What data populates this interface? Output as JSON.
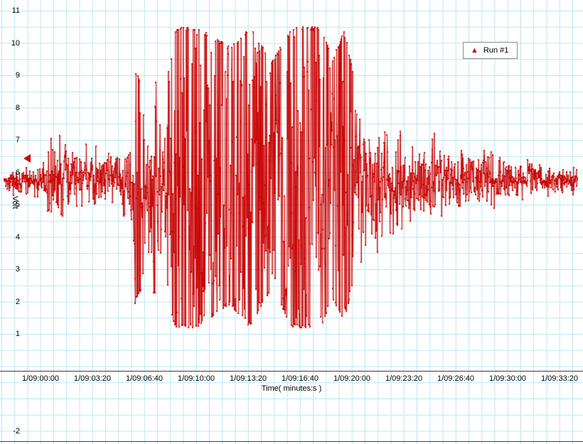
{
  "colors": {
    "background": "#ffffff",
    "grid": "#bce8ef",
    "series": "#c80000",
    "axis_line": "#3c3c3c",
    "text": "#000000"
  },
  "legend": {
    "marker": "triangle-up-icon",
    "marker_glyph": "▲",
    "marker_color": "#cc0000",
    "label": "Run #1"
  },
  "cursor_marker": {
    "shape": "triangle-left",
    "color": "#cc0000"
  },
  "chart_data": {
    "type": "line",
    "title": "",
    "xlabel": "Time( minutes:s )",
    "ylabel": "Volt",
    "ylim": [
      -2,
      11
    ],
    "grid": true,
    "legend_position": "top-right",
    "series": [
      {
        "name": "Run #1",
        "color": "#c80000",
        "marker": "dot"
      }
    ],
    "x_ticks": [
      "1/09:00:00",
      "1/09:03:20",
      "1/09:06:40",
      "1/09:10:00",
      "1/09:13:20",
      "1/09:16:40",
      "1/09:20:00",
      "1/09:23:20",
      "1/09:26:40",
      "1/09:30:00",
      "1/09:33:20"
    ],
    "y_ticks": [
      "11",
      "10",
      "9",
      "8",
      "7",
      "6",
      "5",
      "4",
      "3",
      "2",
      "1"
    ],
    "y_below_axis_label": "-2",
    "signal": {
      "description": "Dense noisy voltage waveform: quiet baseline ~5.7 V at start, growing bursts from 1/09:05, heavily saturated bursts (clipped near 10.5 V top and 1.2 V bottom) between ~1/09:07 and ~1/09:20, then gradually decaying noise back to ~5.7 V baseline by 1/09:30.",
      "baseline_v": 5.7,
      "t_start_s": -140,
      "t_end_s": 2070,
      "sample_interval_s": 1.4,
      "envelope_t_lo_hi": [
        [
          -140,
          5.3,
          6.2
        ],
        [
          -60,
          5.2,
          6.3
        ],
        [
          0,
          5.0,
          6.5
        ],
        [
          25,
          4.8,
          6.7
        ],
        [
          33,
          3.6,
          8.0
        ],
        [
          45,
          4.2,
          7.3
        ],
        [
          80,
          4.4,
          7.5
        ],
        [
          100,
          4.3,
          7.4
        ],
        [
          150,
          4.7,
          7.0
        ],
        [
          220,
          4.9,
          6.8
        ],
        [
          300,
          4.8,
          6.9
        ],
        [
          345,
          4.2,
          7.3
        ],
        [
          365,
          1.9,
          9.2
        ],
        [
          405,
          2.8,
          8.5
        ],
        [
          440,
          2.2,
          8.9
        ],
        [
          480,
          2.9,
          8.5
        ],
        [
          515,
          1.2,
          10.45
        ],
        [
          600,
          1.2,
          10.5
        ],
        [
          730,
          1.9,
          9.9
        ],
        [
          810,
          1.2,
          10.5
        ],
        [
          890,
          2.4,
          9.4
        ],
        [
          970,
          1.2,
          10.5
        ],
        [
          1080,
          1.2,
          10.5
        ],
        [
          1125,
          2.1,
          9.5
        ],
        [
          1170,
          1.3,
          10.4
        ],
        [
          1205,
          2.6,
          9.1
        ],
        [
          1245,
          3.1,
          8.3
        ],
        [
          1290,
          3.0,
          8.0
        ],
        [
          1340,
          3.1,
          7.8
        ],
        [
          1390,
          3.7,
          7.4
        ],
        [
          1460,
          4.0,
          7.5
        ],
        [
          1530,
          4.3,
          7.2
        ],
        [
          1620,
          4.6,
          7.1
        ],
        [
          1720,
          4.8,
          6.9
        ],
        [
          1830,
          5.0,
          6.6
        ],
        [
          1940,
          5.2,
          6.4
        ],
        [
          2070,
          5.3,
          6.2
        ]
      ]
    }
  }
}
